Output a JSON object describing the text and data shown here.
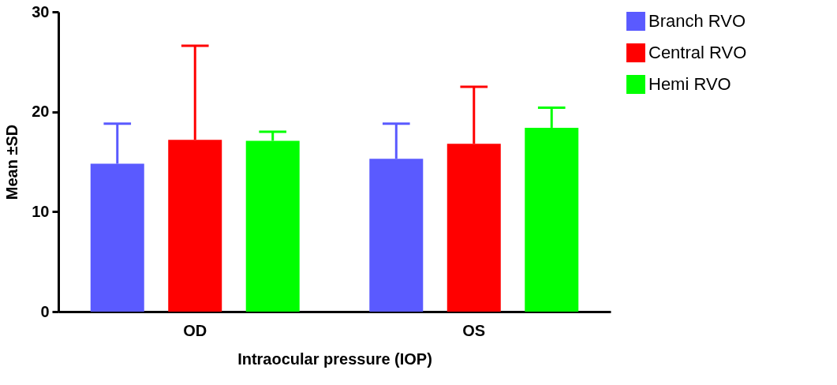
{
  "chart_data": {
    "type": "bar",
    "xlabel": "Intraocular pressure (IOP)",
    "ylabel": "Mean ±SD",
    "categories": [
      "OD",
      "OS"
    ],
    "series": [
      {
        "name": "Branch RVO",
        "color": "#5a5aff",
        "values": [
          14.8,
          15.3
        ],
        "errors": [
          [
            14.8,
            18.8
          ],
          [
            15.3,
            18.8
          ]
        ]
      },
      {
        "name": "Central RVO",
        "color": "#ff0000",
        "values": [
          17.2,
          16.8
        ],
        "errors": [
          [
            17.2,
            26.6
          ],
          [
            16.8,
            22.5
          ]
        ]
      },
      {
        "name": "Hemi RVO",
        "color": "#00ff00",
        "values": [
          17.1,
          18.4
        ],
        "errors": [
          [
            17.1,
            18.0
          ],
          [
            18.4,
            20.4
          ]
        ]
      }
    ],
    "ylim": [
      0,
      30
    ],
    "yticks": [
      0,
      10,
      20,
      30
    ],
    "grid": false,
    "legend": "top right"
  }
}
